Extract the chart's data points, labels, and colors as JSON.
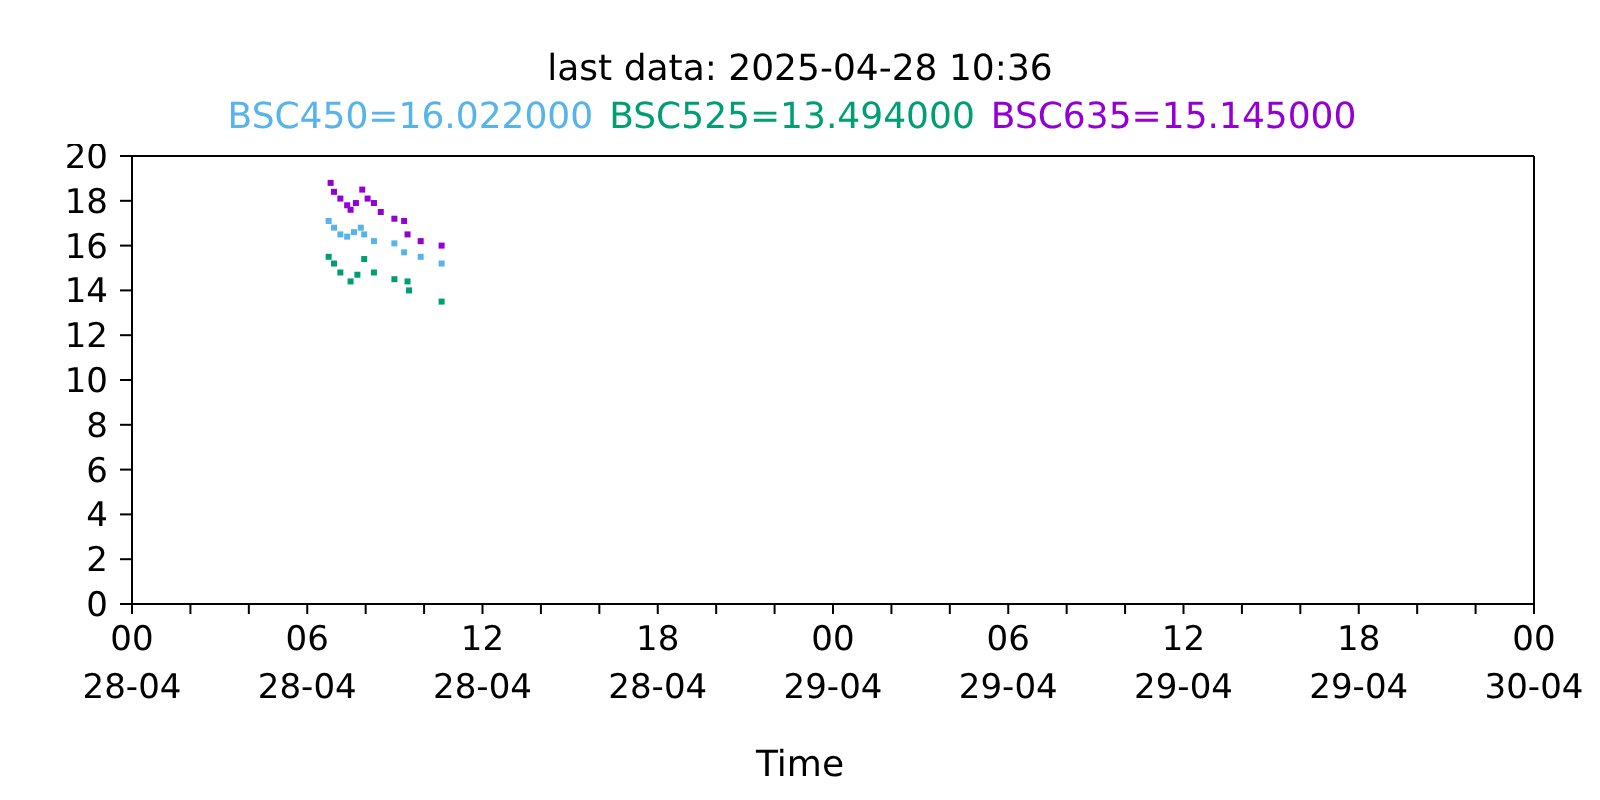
{
  "chart_data": {
    "type": "scatter",
    "title": "last data: 2025-04-28 10:36",
    "xlabel": "Time",
    "legend": "top",
    "grid": false,
    "marker": "square",
    "xlim": [
      "2025-04-28T00:00",
      "2025-04-30T00:00"
    ],
    "xticks": [
      {
        "value": "2025-04-28T00:00",
        "label": "00\n28-04"
      },
      {
        "value": "2025-04-28T02:00",
        "label": null
      },
      {
        "value": "2025-04-28T04:00",
        "label": null
      },
      {
        "value": "2025-04-28T06:00",
        "label": "06\n28-04"
      },
      {
        "value": "2025-04-28T08:00",
        "label": null
      },
      {
        "value": "2025-04-28T10:00",
        "label": null
      },
      {
        "value": "2025-04-28T12:00",
        "label": "12\n28-04"
      },
      {
        "value": "2025-04-28T14:00",
        "label": null
      },
      {
        "value": "2025-04-28T16:00",
        "label": null
      },
      {
        "value": "2025-04-28T18:00",
        "label": "18\n28-04"
      },
      {
        "value": "2025-04-28T20:00",
        "label": null
      },
      {
        "value": "2025-04-28T22:00",
        "label": null
      },
      {
        "value": "2025-04-29T00:00",
        "label": "00\n29-04"
      },
      {
        "value": "2025-04-29T02:00",
        "label": null
      },
      {
        "value": "2025-04-29T04:00",
        "label": null
      },
      {
        "value": "2025-04-29T06:00",
        "label": "06\n29-04"
      },
      {
        "value": "2025-04-29T08:00",
        "label": null
      },
      {
        "value": "2025-04-29T10:00",
        "label": null
      },
      {
        "value": "2025-04-29T12:00",
        "label": "12\n29-04"
      },
      {
        "value": "2025-04-29T14:00",
        "label": null
      },
      {
        "value": "2025-04-29T16:00",
        "label": null
      },
      {
        "value": "2025-04-29T18:00",
        "label": "18\n29-04"
      },
      {
        "value": "2025-04-29T20:00",
        "label": null
      },
      {
        "value": "2025-04-29T22:00",
        "label": null
      },
      {
        "value": "2025-04-30T00:00",
        "label": "00\n30-04"
      }
    ],
    "ylim": [
      0,
      20
    ],
    "yticks": [
      0,
      2,
      4,
      6,
      8,
      10,
      12,
      14,
      16,
      18,
      20
    ],
    "series": [
      {
        "name": "BSC450=16.022000",
        "color": "#56b4e9",
        "x": [
          "2025-04-28T06:44",
          "2025-04-28T06:55",
          "2025-04-28T07:08",
          "2025-04-28T07:22",
          "2025-04-28T07:36",
          "2025-04-28T07:50",
          "2025-04-28T07:57",
          "2025-04-28T08:17",
          "2025-04-28T08:59",
          "2025-04-28T09:19",
          "2025-04-28T09:53",
          "2025-04-28T10:36"
        ],
        "values": [
          17.1,
          16.8,
          16.5,
          16.4,
          16.6,
          16.8,
          16.5,
          16.2,
          16.1,
          15.7,
          15.5,
          15.2
        ]
      },
      {
        "name": "BSC525=13.494000",
        "color": "#009e73",
        "x": [
          "2025-04-28T06:44",
          "2025-04-28T06:55",
          "2025-04-28T07:08",
          "2025-04-28T07:29",
          "2025-04-28T07:43",
          "2025-04-28T07:57",
          "2025-04-28T08:17",
          "2025-04-28T08:59",
          "2025-04-28T09:26",
          "2025-04-28T09:29",
          "2025-04-28T10:36"
        ],
        "values": [
          15.5,
          15.2,
          14.8,
          14.4,
          14.7,
          15.4,
          14.8,
          14.5,
          14.4,
          14.0,
          13.5
        ]
      },
      {
        "name": "BSC635=15.145000",
        "color": "#9400d3",
        "x": [
          "2025-04-28T06:48",
          "2025-04-28T06:55",
          "2025-04-28T07:08",
          "2025-04-28T07:22",
          "2025-04-28T07:29",
          "2025-04-28T07:40",
          "2025-04-28T07:53",
          "2025-04-28T08:04",
          "2025-04-28T08:17",
          "2025-04-28T08:31",
          "2025-04-28T08:59",
          "2025-04-28T09:19",
          "2025-04-28T09:26",
          "2025-04-28T09:53",
          "2025-04-28T10:36"
        ],
        "values": [
          18.8,
          18.4,
          18.1,
          17.8,
          17.6,
          17.9,
          18.5,
          18.1,
          17.9,
          17.5,
          17.2,
          17.1,
          16.5,
          16.2,
          16.0
        ]
      }
    ]
  }
}
